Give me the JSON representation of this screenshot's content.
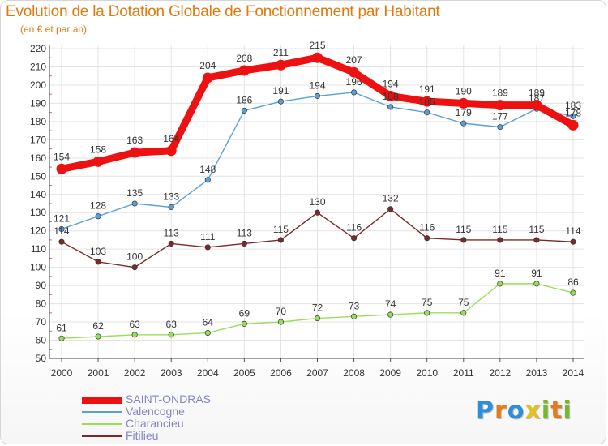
{
  "title": "Evolution de la Dotation Globale de Fonctionnement par Habitant",
  "subtitle": "(en € et par an)",
  "brand": {
    "letters": [
      "P",
      "r",
      "o",
      "x",
      "i",
      "t",
      "i"
    ],
    "colors": [
      "#2e8fd6",
      "#e37a1c",
      "#2e8fd6",
      "#e3c01c",
      "#76b82a",
      "#e37a1c",
      "#76b82a"
    ]
  },
  "chart_data": {
    "type": "line",
    "x": [
      "2000",
      "2001",
      "2002",
      "2003",
      "2004",
      "2005",
      "2006",
      "2007",
      "2008",
      "2009",
      "2010",
      "2011",
      "2012",
      "2013",
      "2014"
    ],
    "ylim": [
      50,
      220
    ],
    "yticks": [
      "50",
      "60",
      "70",
      "80",
      "90",
      "100",
      "110",
      "120",
      "130",
      "140",
      "150",
      "160",
      "170",
      "180",
      "190",
      "200",
      "210",
      "220"
    ],
    "grid": true,
    "legend_position": "bottom-left",
    "series": [
      {
        "name": "SAINT-ONDRAS",
        "color": "#ee1111",
        "weight": "thick",
        "values": [
          154,
          158,
          163,
          164,
          204,
          208,
          211,
          215,
          207,
          194,
          191,
          190,
          189,
          189,
          178
        ]
      },
      {
        "name": "Valencogne",
        "color": "#5aa0d8",
        "weight": "thin",
        "values": [
          121,
          128,
          135,
          133,
          148,
          186,
          191,
          194,
          196,
          188,
          185,
          179,
          177,
          187,
          183
        ]
      },
      {
        "name": "Charancieu",
        "color": "#99de58",
        "weight": "thin",
        "values": [
          61,
          62,
          63,
          63,
          64,
          69,
          70,
          72,
          73,
          74,
          75,
          75,
          91,
          91,
          86
        ]
      },
      {
        "name": "Fitilieu",
        "color": "#7a2a2a",
        "weight": "thin",
        "values": [
          114,
          103,
          100,
          113,
          111,
          113,
          115,
          130,
          116,
          132,
          116,
          115,
          115,
          115,
          114
        ]
      }
    ]
  }
}
